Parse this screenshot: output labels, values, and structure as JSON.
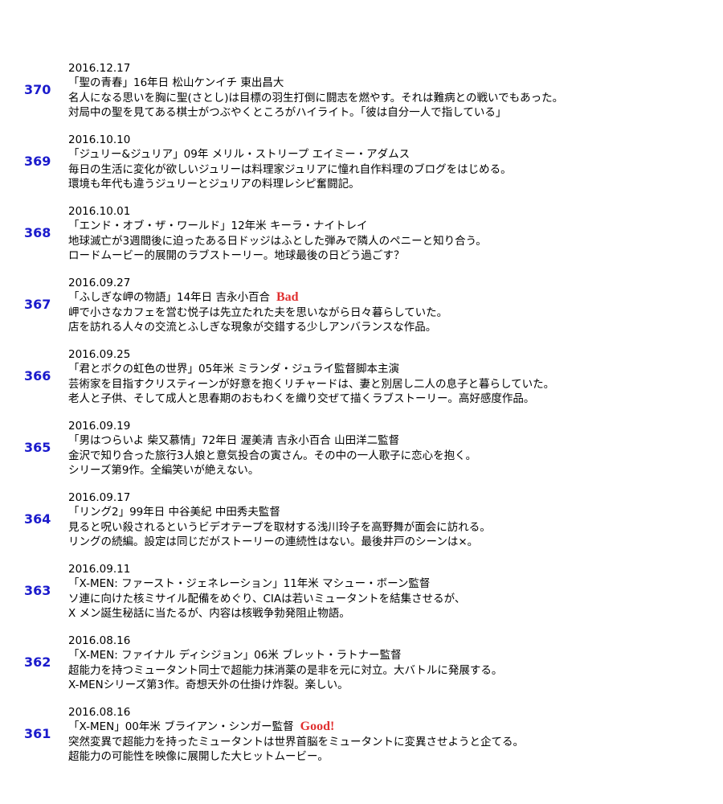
{
  "entries": [
    {
      "number": "370",
      "date": "2016.12.17",
      "title": "「聖の青春」16年日 松山ケンイチ 東出昌大",
      "lines": [
        "名人になる思いを胸に聖(さとし)は目標の羽生打倒に闘志を燃やす。それは難病との戦いでもあった。",
        "対局中の聖を見てある棋士がつぶやくところがハイライト。「彼は自分一人で指している」"
      ]
    },
    {
      "number": "369",
      "date": "2016.10.10",
      "title": "「ジュリー&ジュリア」09年 メリル・ストリープ エイミー・アダムス",
      "lines": [
        "毎日の生活に変化が欲しいジュリーは料理家ジュリアに憧れ自作料理のブログをはじめる。",
        "環境も年代も違うジュリーとジュリアの料理レシピ奮闘記。"
      ]
    },
    {
      "number": "368",
      "date": "2016.10.01",
      "title": "「エンド・オブ・ザ・ワールド」12年米 キーラ・ナイトレイ",
      "lines": [
        "地球滅亡が3週間後に迫ったある日ドッジはふとした弾みで隣人のペニーと知り合う。",
        "ロードムービー的展開のラブストーリー。地球最後の日どう過ごす？"
      ]
    },
    {
      "number": "367",
      "date": "2016.09.27",
      "title": "「ふしぎな岬の物語」14年日 吉永小百合",
      "tag": "Bad",
      "lines": [
        "岬で小さなカフェを営む悦子は先立たれた夫を思いながら日々暮らしていた。",
        "店を訪れる人々の交流とふしぎな現象が交錯する少しアンバランスな作品。"
      ]
    },
    {
      "number": "366",
      "date": "2016.09.25",
      "title": "「君とボクの虹色の世界」05年米 ミランダ・ジュライ監督脚本主演",
      "lines": [
        "芸術家を目指すクリスティーンが好意を抱くリチャードは、妻と別居し二人の息子と暮らしていた。",
        "老人と子供、そして成人と思春期のおもわくを織り交ぜて描くラブストーリー。高好感度作品。"
      ]
    },
    {
      "number": "365",
      "date": "2016.09.19",
      "title": "「男はつらいよ 柴又慕情」72年日 渥美清 吉永小百合 山田洋二監督",
      "lines": [
        "金沢で知り合った旅行3人娘と意気投合の寅さん。その中の一人歌子に恋心を抱く。",
        "シリーズ第9作。全編笑いが絶えない。"
      ]
    },
    {
      "number": "364",
      "date": "2016.09.17",
      "title": "「リング2」99年日 中谷美紀 中田秀夫監督",
      "lines": [
        "見ると呪い殺されるというビデオテープを取材する浅川玲子を高野舞が面会に訪れる。",
        "リングの続編。設定は同じだがストーリーの連続性はない。最後井戸のシーンは×。"
      ]
    },
    {
      "number": "363",
      "date": "2016.09.11",
      "title": "「X-MEN: ファースト・ジェネレーション」11年米 マシュー・ボーン監督",
      "lines": [
        "ソ連に向けた核ミサイル配備をめぐり、CIAは若いミュータントを結集させるが、",
        "X メン誕生秘話に当たるが、内容は核戦争勃発阻止物語。"
      ]
    },
    {
      "number": "362",
      "date": "2016.08.16",
      "title": "「X-MEN: ファイナル ディシジョン」06米 ブレット・ラトナー監督",
      "lines": [
        "超能力を持つミュータント同士で超能力抹消薬の是非を元に対立。大バトルに発展する。",
        "X-MENシリーズ第3作。奇想天外の仕掛け炸裂。楽しい。"
      ]
    },
    {
      "number": "361",
      "date": "2016.08.16",
      "title": "「X-MEN」00年米 ブライアン・シンガー監督",
      "tag": "Good!",
      "lines": [
        "突然変異で超能力を持ったミュータントは世界首脳をミュータントに変異させようと企てる。",
        "超能力の可能性を映像に展開した大ヒットムービー。"
      ]
    }
  ]
}
